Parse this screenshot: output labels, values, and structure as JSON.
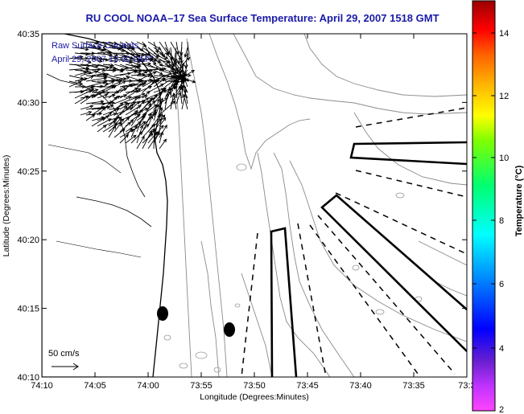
{
  "title": "RU COOL  NOAA–17  Sea Surface Temperature:  April 29, 2007 1518 GMT",
  "annotation": {
    "line1": "Raw Surface Currents",
    "line2": "April 29, 2007 15:00 GMT"
  },
  "scale_label": "50 cm/s",
  "x_axis": {
    "label": "Longitude (Degrees:Minutes)",
    "ticks": [
      "74:10",
      "74:05",
      "74:00",
      "73:55",
      "73:50",
      "73:45",
      "73:40",
      "73:35",
      "73:3"
    ]
  },
  "y_axis": {
    "label": "Latitude (Degrees:Minutes)",
    "ticks": [
      "40:35",
      "40:30",
      "40:25",
      "40:20",
      "40:15",
      "40:10"
    ]
  },
  "colorbar": {
    "label": "Temperature (°C)",
    "ticks": [
      "14",
      "12",
      "10",
      "8",
      "6",
      "4",
      "2"
    ],
    "colors": [
      "#8b0000",
      "#ff0000",
      "#ff8000",
      "#ffff00",
      "#00ff00",
      "#00ffff",
      "#0000ff",
      "#7f00ff",
      "#ff00ff"
    ]
  }
}
